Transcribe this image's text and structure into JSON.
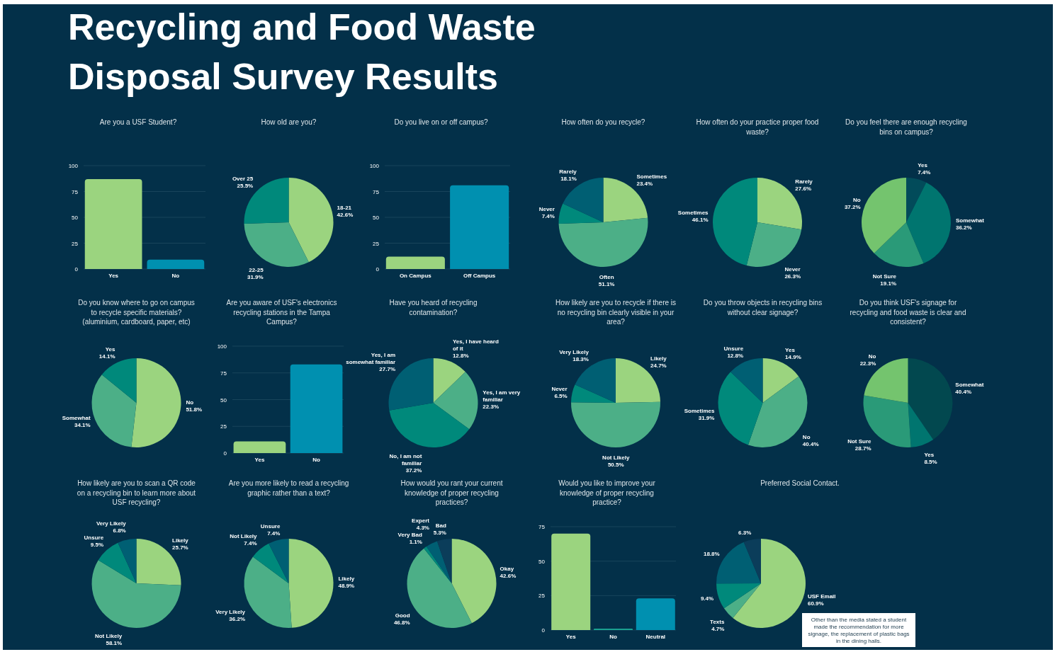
{
  "chart_data": [
    {
      "type": "other",
      "title": "Recycling and Food Waste Disposal Survey Results"
    },
    {
      "type": "bar",
      "title": "Are you a USF Student?",
      "categories": [
        "Yes",
        "No"
      ],
      "values": [
        87,
        9
      ],
      "colors": [
        "#9bd47f",
        "#0090b0"
      ],
      "ylim": [
        0,
        100
      ],
      "yticks": [
        0,
        25,
        50,
        75,
        100
      ],
      "grid": "y"
    },
    {
      "type": "pie",
      "title": "How old are you?",
      "categories": [
        "18-21",
        "22-25",
        "Over 25"
      ],
      "values": [
        42.6,
        31.9,
        25.5
      ],
      "value_labels": [
        "42.6%",
        "31.9%",
        "25.5%"
      ],
      "colors": [
        "#9bd47f",
        "#4caf87",
        "#00897b"
      ]
    },
    {
      "type": "bar",
      "title": "Do you live on or off campus?",
      "categories": [
        "On Campus",
        "Off Campus"
      ],
      "values": [
        12,
        81
      ],
      "colors": [
        "#9bd47f",
        "#0090b0"
      ],
      "ylim": [
        0,
        100
      ],
      "yticks": [
        0,
        25,
        50,
        75,
        100
      ],
      "grid": "y"
    },
    {
      "type": "pie",
      "title": "How often do you recycle?",
      "categories": [
        "Sometimes",
        "Often",
        "Never",
        "Rarely"
      ],
      "values": [
        23.4,
        51.1,
        7.4,
        18.1
      ],
      "value_labels": [
        "23.4%",
        "51.1%",
        "7.4%",
        "18.1%"
      ],
      "colors": [
        "#9bd47f",
        "#4caf87",
        "#00897b",
        "#005f73"
      ]
    },
    {
      "type": "pie",
      "title": "How often do your practice proper food waste?",
      "categories": [
        "Rarely",
        "Never",
        "Sometimes"
      ],
      "values": [
        27.6,
        26.3,
        46.1
      ],
      "value_labels": [
        "27.6%",
        "26.3%",
        "46.1%"
      ],
      "colors": [
        "#9bd47f",
        "#4caf87",
        "#00897b"
      ]
    },
    {
      "type": "pie",
      "title": "Do you feel there are enough recycling bins on campus?",
      "categories": [
        "Yes",
        "Somewhat",
        "Not Sure",
        "No"
      ],
      "values": [
        7.4,
        36.2,
        19.1,
        37.2
      ],
      "value_labels": [
        "7.4%",
        "36.2%",
        "19.1%",
        "37.2%"
      ],
      "colors": [
        "#024b5a",
        "#00756f",
        "#2a9a78",
        "#74c46e"
      ]
    },
    {
      "type": "pie",
      "title": "Do you know where to go on campus to recycle specific materials? (aluminium, cardboard, paper, etc)",
      "categories": [
        "No",
        "Somewhat",
        "Yes"
      ],
      "values": [
        51.8,
        34.1,
        14.1
      ],
      "value_labels": [
        "51.8%",
        "34.1%",
        "14.1%"
      ],
      "colors": [
        "#9bd47f",
        "#4caf87",
        "#00897b"
      ]
    },
    {
      "type": "bar",
      "title": "Are you aware of USF's electronics recycling stations in the Tampa Campus?",
      "categories": [
        "Yes",
        "No"
      ],
      "values": [
        11,
        83
      ],
      "colors": [
        "#9bd47f",
        "#0090b0"
      ],
      "ylim": [
        0,
        100
      ],
      "yticks": [
        0,
        25,
        50,
        75,
        100
      ],
      "grid": "y"
    },
    {
      "type": "pie",
      "title": "Have you heard of recycling contamination?",
      "categories": [
        "Yes, I have heard of it",
        "Yes, I am very familiar",
        "No, I am not familiar",
        "Yes, I am somewhat familiar"
      ],
      "values": [
        12.8,
        22.3,
        37.2,
        27.7
      ],
      "value_labels": [
        "12.8%",
        "22.3%",
        "37.2%",
        "27.7%"
      ],
      "colors": [
        "#9bd47f",
        "#4caf87",
        "#00897b",
        "#005f73"
      ]
    },
    {
      "type": "pie",
      "title": "How likely are you to recycle if there is no recycling bin clearly visible in your area?",
      "categories": [
        "Likely",
        "Not Likely",
        "Never",
        "Very Likely"
      ],
      "values": [
        24.7,
        50.5,
        6.5,
        18.3
      ],
      "value_labels": [
        "24.7%",
        "50.5%",
        "6.5%",
        "18.3%"
      ],
      "colors": [
        "#9bd47f",
        "#4caf87",
        "#00897b",
        "#005f73"
      ]
    },
    {
      "type": "pie",
      "title": "Do you throw objects in recycling bins without clear signage?",
      "categories": [
        "Yes",
        "No",
        "Sometimes",
        "Unsure"
      ],
      "values": [
        14.9,
        40.4,
        31.9,
        12.8
      ],
      "value_labels": [
        "14.9%",
        "40.4%",
        "31.9%",
        "12.8%"
      ],
      "colors": [
        "#9bd47f",
        "#4caf87",
        "#00897b",
        "#005f73"
      ]
    },
    {
      "type": "pie",
      "title": "Do you think USF's signage for recycling and food waste is clear and consistent?",
      "categories": [
        "Somewhat",
        "Yes",
        "Not Sure",
        "No"
      ],
      "values": [
        40.4,
        8.5,
        28.7,
        22.3
      ],
      "value_labels": [
        "40.4%",
        "8.5%",
        "28.7%",
        "22.3%"
      ],
      "colors": [
        "#02484f",
        "#00756f",
        "#2a9a78",
        "#74c46e"
      ]
    },
    {
      "type": "pie",
      "title": "How likely are you to scan a QR code on a recycling bin to learn more about USF recycling?",
      "categories": [
        "Likely",
        "Not Likely",
        "Unsure",
        "Very Likely"
      ],
      "values": [
        25.7,
        58.1,
        9.5,
        6.8
      ],
      "value_labels": [
        "25.7%",
        "58.1%",
        "9.5%",
        "6.8%"
      ],
      "colors": [
        "#9bd47f",
        "#4caf87",
        "#00897b",
        "#005f73"
      ]
    },
    {
      "type": "pie",
      "title": "Are you more likely to read a recycling graphic rather than a text?",
      "categories": [
        "Likely",
        "Very Likely",
        "Not Likely",
        "Unsure"
      ],
      "values": [
        48.9,
        36.2,
        7.4,
        7.4
      ],
      "value_labels": [
        "48.9%",
        "36.2%",
        "7.4%",
        "7.4%"
      ],
      "colors": [
        "#9bd47f",
        "#4caf87",
        "#00897b",
        "#005f73"
      ]
    },
    {
      "type": "pie",
      "title": "How would you rant your current knowledge of proper recycling practices?",
      "categories": [
        "Okay",
        "Good",
        "Very Bad",
        "Expert",
        "Bad"
      ],
      "values": [
        42.6,
        46.8,
        1.1,
        4.3,
        5.3
      ],
      "value_labels": [
        "42.6%",
        "46.8%",
        "1.1%",
        "4.3%",
        "5.3%"
      ],
      "colors": [
        "#9bd47f",
        "#4caf87",
        "#00897b",
        "#005f73",
        "#0b3d5a"
      ]
    },
    {
      "type": "bar",
      "title": "Would you like to improve your knowledge of proper recycling practice?",
      "categories": [
        "Yes",
        "No",
        "Neutral"
      ],
      "values": [
        70,
        1,
        23
      ],
      "colors": [
        "#9bd47f",
        "#1aa090",
        "#0090b0"
      ],
      "ylim": [
        0,
        75
      ],
      "yticks": [
        0,
        25,
        50,
        75
      ],
      "grid": "y"
    },
    {
      "type": "pie",
      "title": "Preferred Social Contact.",
      "categories": [
        "USF Email",
        "Texts",
        null,
        null,
        null
      ],
      "values": [
        60.9,
        4.7,
        9.4,
        18.8,
        6.3
      ],
      "value_labels": [
        "60.9%",
        "4.7%",
        "9.4%",
        "18.8%",
        "6.3%"
      ],
      "colors": [
        "#9bd47f",
        "#4caf87",
        "#00897b",
        "#005f73",
        "#0b3d5a"
      ],
      "annotations": [
        "Other than the media stated a student made the recommendation for more signage, the replacement of plastic bags in the dining halls."
      ]
    }
  ]
}
